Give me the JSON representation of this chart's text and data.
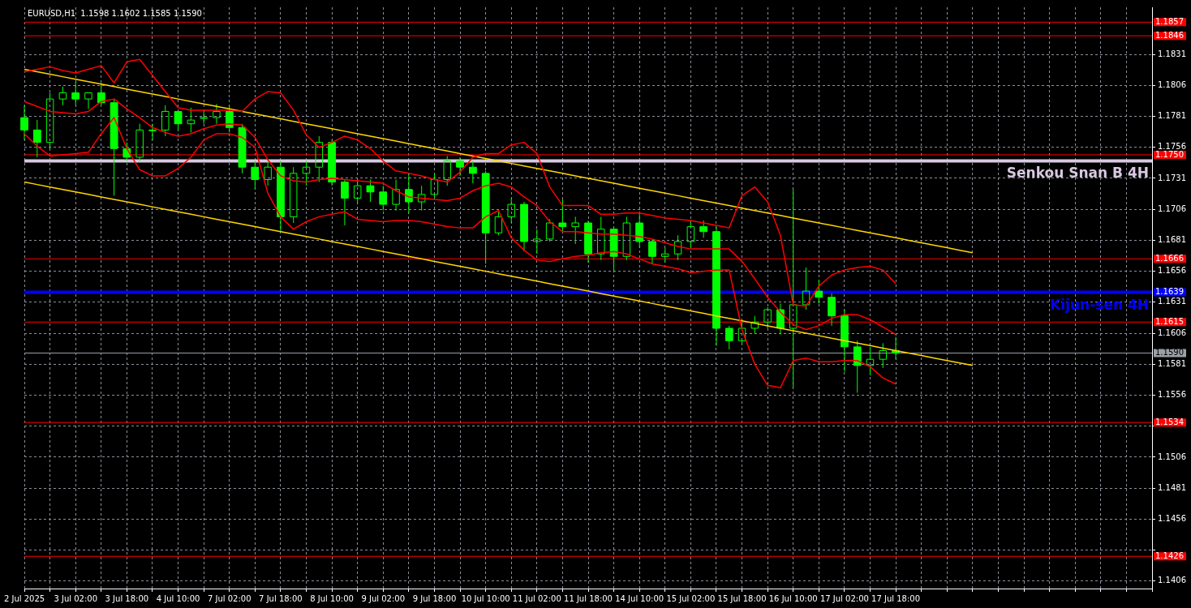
{
  "chart_data": {
    "type": "candlestick",
    "title": "EURUSD,H1  1.1598 1.1602 1.1585 1.1590",
    "color": "#00ff00",
    "categories": [
      "2 Jul 2025",
      null,
      null,
      null,
      "3 Jul 02:00",
      null,
      null,
      null,
      "3 Jul 18:00",
      null,
      null,
      null,
      "4 Jul 10:00",
      null,
      null,
      null,
      "7 Jul 02:00",
      null,
      null,
      null,
      "7 Jul 18:00",
      null,
      null,
      null,
      "8 Jul 10:00",
      null,
      null,
      null,
      "9 Jul 02:00",
      null,
      null,
      null,
      "9 Jul 18:00",
      null,
      null,
      null,
      "10 Jul 10:00",
      null,
      null,
      null,
      "11 Jul 02:00",
      null,
      null,
      null,
      "11 Jul 18:00",
      null,
      null,
      null,
      "14 Jul 10:00",
      null,
      null,
      null,
      "15 Jul 02:00",
      null,
      null,
      null,
      "15 Jul 18:00",
      null,
      null,
      null,
      "16 Jul 10:00",
      null,
      null,
      null,
      "17 Jul 02:00",
      null,
      null,
      null,
      "17 Jul 18:00",
      null,
      null,
      null,
      null,
      null,
      null,
      null,
      null,
      null,
      null,
      null,
      null,
      null,
      null,
      null,
      null,
      null,
      null,
      null,
      null
    ],
    "ohlc": [
      [
        1.178,
        1.179,
        1.1762,
        1.177
      ],
      [
        1.177,
        1.1778,
        1.1748,
        1.176
      ],
      [
        1.176,
        1.18,
        1.1755,
        1.1795
      ],
      [
        1.1795,
        1.1805,
        1.179,
        1.18
      ],
      [
        1.18,
        1.1809,
        1.179,
        1.1795
      ],
      [
        1.1795,
        1.18,
        1.1787,
        1.18
      ],
      [
        1.18,
        1.1808,
        1.179,
        1.1792
      ],
      [
        1.1792,
        1.1795,
        1.1717,
        1.1755
      ],
      [
        1.1755,
        1.176,
        1.1745,
        1.1748
      ],
      [
        1.1748,
        1.1775,
        1.1745,
        1.177
      ],
      [
        1.177,
        1.1775,
        1.1762,
        1.177
      ],
      [
        1.177,
        1.179,
        1.1765,
        1.1785
      ],
      [
        1.1785,
        1.1785,
        1.177,
        1.1775
      ],
      [
        1.1775,
        1.1788,
        1.1768,
        1.1778
      ],
      [
        1.178,
        1.1785,
        1.1775,
        1.178
      ],
      [
        1.178,
        1.1791,
        1.1775,
        1.1785
      ],
      [
        1.1785,
        1.179,
        1.1768,
        1.1772
      ],
      [
        1.1772,
        1.1775,
        1.1735,
        1.174
      ],
      [
        1.174,
        1.1745,
        1.1722,
        1.173
      ],
      [
        1.173,
        1.1745,
        1.1725,
        1.174
      ],
      [
        1.174,
        1.1745,
        1.1688,
        1.17
      ],
      [
        1.17,
        1.174,
        1.1695,
        1.1735
      ],
      [
        1.1735,
        1.1745,
        1.1725,
        1.174
      ],
      [
        1.174,
        1.1765,
        1.1728,
        1.176
      ],
      [
        1.176,
        1.1762,
        1.1725,
        1.1728
      ],
      [
        1.1728,
        1.173,
        1.1693,
        1.1715
      ],
      [
        1.1715,
        1.173,
        1.171,
        1.1725
      ],
      [
        1.1725,
        1.173,
        1.1712,
        1.172
      ],
      [
        1.172,
        1.1725,
        1.1705,
        1.171
      ],
      [
        1.171,
        1.173,
        1.1705,
        1.1722
      ],
      [
        1.1722,
        1.1735,
        1.1703,
        1.1712
      ],
      [
        1.1712,
        1.1725,
        1.1705,
        1.1718
      ],
      [
        1.1718,
        1.1735,
        1.1715,
        1.173
      ],
      [
        1.173,
        1.1749,
        1.1725,
        1.1745
      ],
      [
        1.1745,
        1.1748,
        1.1733,
        1.174
      ],
      [
        1.174,
        1.1745,
        1.1727,
        1.1735
      ],
      [
        1.1735,
        1.1737,
        1.1662,
        1.1687
      ],
      [
        1.1687,
        1.1705,
        1.1685,
        1.17
      ],
      [
        1.17,
        1.1715,
        1.1695,
        1.171
      ],
      [
        1.171,
        1.1712,
        1.1672,
        1.168
      ],
      [
        1.168,
        1.169,
        1.167,
        1.1682
      ],
      [
        1.1682,
        1.1698,
        1.168,
        1.1695
      ],
      [
        1.1695,
        1.1714,
        1.1688,
        1.1692
      ],
      [
        1.1692,
        1.17,
        1.1678,
        1.1695
      ],
      [
        1.1695,
        1.1697,
        1.1663,
        1.167
      ],
      [
        1.167,
        1.17,
        1.1665,
        1.169
      ],
      [
        1.169,
        1.1692,
        1.1655,
        1.1668
      ],
      [
        1.1668,
        1.17,
        1.1665,
        1.1695
      ],
      [
        1.1695,
        1.1703,
        1.1675,
        1.168
      ],
      [
        1.168,
        1.1682,
        1.1662,
        1.1668
      ],
      [
        1.1668,
        1.1675,
        1.1663,
        1.167
      ],
      [
        1.167,
        1.1685,
        1.1665,
        1.168
      ],
      [
        1.168,
        1.1697,
        1.1675,
        1.1692
      ],
      [
        1.1692,
        1.1697,
        1.1683,
        1.1688
      ],
      [
        1.1688,
        1.1692,
        1.1596,
        1.161
      ],
      [
        1.161,
        1.1612,
        1.1593,
        1.16
      ],
      [
        1.16,
        1.1615,
        1.1597,
        1.161
      ],
      [
        1.161,
        1.162,
        1.1606,
        1.1615
      ],
      [
        1.1615,
        1.1627,
        1.161,
        1.1625
      ],
      [
        1.1625,
        1.163,
        1.1605,
        1.161
      ],
      [
        1.161,
        1.1722,
        1.1562,
        1.1629
      ],
      [
        1.1629,
        1.1659,
        1.1625,
        1.164
      ],
      [
        1.164,
        1.1649,
        1.163,
        1.1635
      ],
      [
        1.1635,
        1.1638,
        1.1612,
        1.162
      ],
      [
        1.162,
        1.1625,
        1.1575,
        1.1595
      ],
      [
        1.1595,
        1.16,
        1.1558,
        1.158
      ],
      [
        1.158,
        1.1595,
        1.1572,
        1.1585
      ],
      [
        1.1585,
        1.1598,
        1.1578,
        1.1592
      ],
      [
        1.1592,
        1.1603,
        1.1585,
        1.159
      ],
      null,
      null,
      null,
      null,
      null,
      null,
      null,
      null,
      null,
      null,
      null,
      null,
      null,
      null,
      null,
      null,
      null,
      null,
      null,
      null
    ],
    "series": [
      {
        "type": "line",
        "color": "#ff0000",
        "values": [
          1.1817,
          1.1819,
          1.1821,
          1.1818,
          1.1816,
          1.1819,
          1.1822,
          1.1808,
          1.1825,
          1.1827,
          1.1814,
          1.1801,
          1.1788,
          1.1786,
          1.1786,
          1.1786,
          1.1786,
          1.1785,
          1.1795,
          1.1801,
          1.18,
          1.1786,
          1.1766,
          1.1756,
          1.176,
          1.1765,
          1.1762,
          1.1755,
          1.1745,
          1.1737,
          1.1735,
          1.1733,
          1.173,
          1.1728,
          1.1736,
          1.1748,
          1.1751,
          1.1751,
          1.1758,
          1.176,
          1.1751,
          1.1724,
          1.1709,
          1.1709,
          1.1709,
          1.1702,
          1.1702,
          1.1703,
          1.1703,
          1.1701,
          1.1699,
          1.1698,
          1.1697,
          1.1695,
          1.1693,
          1.1691,
          1.1717,
          1.1724,
          1.1712,
          1.1685,
          1.1629,
          1.1628,
          1.1644,
          1.1653,
          1.1657,
          1.1659,
          1.166,
          1.1657,
          1.1646,
          null,
          null,
          null,
          null,
          null,
          null,
          null,
          null,
          null,
          null,
          null,
          null,
          null,
          null,
          null,
          null,
          null,
          null,
          null,
          null
        ]
      },
      {
        "type": "line",
        "color": "#ff0000",
        "values": [
          1.1793,
          1.1789,
          1.1785,
          1.1784,
          1.1783,
          1.1785,
          1.1793,
          1.1795,
          1.1787,
          1.178,
          1.1772,
          1.1768,
          1.1765,
          1.1767,
          1.1771,
          1.1774,
          1.1775,
          1.1774,
          1.1764,
          1.1746,
          1.1733,
          1.1729,
          1.1728,
          1.173,
          1.1731,
          1.173,
          1.1729,
          1.1728,
          1.1727,
          1.1721,
          1.1716,
          1.1715,
          1.1714,
          1.1713,
          1.1715,
          1.1721,
          1.1725,
          1.1727,
          1.1724,
          1.1716,
          1.1709,
          1.1696,
          1.1688,
          1.1688,
          1.1687,
          1.1686,
          1.1686,
          1.1685,
          1.1684,
          1.1682,
          1.1679,
          1.1676,
          1.1674,
          1.1674,
          1.1674,
          1.1674,
          1.1664,
          1.165,
          1.1635,
          1.1623,
          1.1613,
          1.1609,
          1.1612,
          1.1618,
          1.1621,
          1.1621,
          1.1617,
          1.1611,
          1.1605,
          null,
          null,
          null,
          null,
          null,
          null,
          null,
          null,
          null,
          null,
          null,
          null,
          null,
          null,
          null,
          null,
          null,
          null,
          null,
          null
        ]
      },
      {
        "type": "line",
        "color": "#ff0000",
        "values": [
          1.1767,
          1.1757,
          1.1749,
          1.175,
          1.1751,
          1.1752,
          1.1767,
          1.178,
          1.1755,
          1.1738,
          1.1733,
          1.1733,
          1.1739,
          1.1748,
          1.1762,
          1.1767,
          1.1767,
          1.1764,
          1.1756,
          1.1719,
          1.17,
          1.169,
          1.1696,
          1.17,
          1.1702,
          1.1704,
          1.1698,
          1.1697,
          1.1696,
          1.1697,
          1.1697,
          1.1696,
          1.1694,
          1.1692,
          1.1691,
          1.1691,
          1.17,
          1.1705,
          1.1683,
          1.1673,
          1.1665,
          1.1664,
          1.1666,
          1.1668,
          1.1669,
          1.1671,
          1.1672,
          1.167,
          1.1666,
          1.1662,
          1.166,
          1.1658,
          1.1655,
          1.1656,
          1.1657,
          1.1657,
          1.1609,
          1.1581,
          1.1564,
          1.1562,
          1.1584,
          1.1586,
          1.1583,
          1.1583,
          1.1584,
          1.1584,
          1.1579,
          1.157,
          1.1565,
          null,
          null,
          null,
          null,
          null,
          null,
          null,
          null,
          null,
          null,
          null,
          null,
          null,
          null,
          null,
          null,
          null,
          null,
          null,
          null
        ]
      },
      {
        "type": "line",
        "color": "#ffd700",
        "values": [
          1.1819,
          1.1817,
          1.1815,
          1.1813,
          1.1811,
          1.1809,
          1.1807,
          1.1805,
          1.1803,
          1.1801,
          1.1799,
          1.1797,
          1.1795,
          1.1793,
          1.1791,
          1.1789,
          1.1787,
          1.1785,
          1.1783,
          1.1781,
          1.1779,
          1.1777,
          1.1775,
          1.1773,
          1.1771,
          1.1769,
          1.1767,
          1.1765,
          1.1763,
          1.1761,
          1.1759,
          1.1757,
          1.1755,
          1.1753,
          1.1751,
          1.1749,
          1.1747,
          1.1745,
          1.1743,
          1.1741,
          1.1739,
          1.1737,
          1.1735,
          1.1733,
          1.1731,
          1.1729,
          1.1727,
          1.1725,
          1.1723,
          1.1721,
          1.1719,
          1.1717,
          1.1715,
          1.1713,
          1.1711,
          1.1709,
          1.1707,
          1.1705,
          1.1703,
          1.1701,
          1.1699,
          1.1697,
          1.1695,
          1.1693,
          1.1691,
          1.1689,
          1.1687,
          1.1685,
          1.1683,
          1.1681,
          1.1679,
          1.1677,
          1.1675,
          1.1673,
          1.1671,
          null,
          null,
          null,
          null,
          null,
          null,
          null,
          null,
          null,
          null,
          null,
          null,
          null,
          null
        ]
      },
      {
        "type": "line",
        "color": "#ffd700",
        "values": [
          1.1728,
          1.1726,
          1.1724,
          1.1722,
          1.172,
          1.1718,
          1.1716,
          1.1714,
          1.1712,
          1.171,
          1.1708,
          1.1706,
          1.1704,
          1.1702,
          1.17,
          1.1698,
          1.1696,
          1.1694,
          1.1692,
          1.169,
          1.1688,
          1.1686,
          1.1684,
          1.1682,
          1.168,
          1.1678,
          1.1676,
          1.1674,
          1.1672,
          1.167,
          1.1668,
          1.1666,
          1.1664,
          1.1662,
          1.166,
          1.1658,
          1.1656,
          1.1654,
          1.1652,
          1.165,
          1.1648,
          1.1646,
          1.1644,
          1.1642,
          1.164,
          1.1638,
          1.1636,
          1.1634,
          1.1632,
          1.163,
          1.1628,
          1.1626,
          1.1624,
          1.1622,
          1.162,
          1.1618,
          1.1616,
          1.1614,
          1.1612,
          1.161,
          1.1608,
          1.1606,
          1.1604,
          1.1602,
          1.16,
          1.1598,
          1.1596,
          1.1594,
          1.1592,
          1.159,
          1.1588,
          1.1586,
          1.1584,
          1.1582,
          1.158,
          null,
          null,
          null,
          null,
          null,
          null,
          null,
          null,
          null,
          null,
          null,
          null,
          null,
          null
        ]
      }
    ],
    "ylim": [
      1.14,
      1.1869
    ],
    "yticks": [
      1.1406,
      {
        "value": 1.1431,
        "label": null
      },
      1.1456,
      1.1481,
      1.1506,
      {
        "value": 1.1531,
        "label": null
      },
      1.1556,
      1.1581,
      1.1606,
      1.1631,
      1.1656,
      1.1681,
      1.1706,
      1.1731,
      1.1756,
      1.1781,
      1.1806,
      1.1831
    ],
    "grid": true,
    "ref_lines": [
      {
        "axis": "y",
        "value": 1.1857,
        "label": "1.1857",
        "color": "#ff0000"
      },
      {
        "axis": "y",
        "value": 1.1846,
        "label": "1.1846",
        "color": "#ff0000"
      },
      {
        "axis": "y",
        "value": 1.175,
        "label": "1.1750",
        "color": "#ff0000"
      },
      {
        "axis": "y",
        "value": 1.1745,
        "color": "#d8c8e0"
      },
      {
        "axis": "y",
        "value": 1.1666,
        "label": "1.1666",
        "color": "#ff0000"
      },
      {
        "axis": "y",
        "value": 1.1639,
        "label": "1.1639",
        "color": "#0000ff"
      },
      {
        "axis": "y",
        "value": 1.1615,
        "label": "1.1615",
        "color": "#ff0000"
      },
      {
        "axis": "y",
        "value": 1.159,
        "label": "1.1590",
        "color": "#9aa0a6"
      },
      {
        "axis": "y",
        "value": 1.1534,
        "label": "1.1534",
        "color": "#ff0000"
      },
      {
        "axis": "y",
        "value": 1.1426,
        "label": "1.1426",
        "color": "#ff0000"
      }
    ],
    "annotations": [
      {
        "text": "Senkou Snan B 4H",
        "y": 1.1745
      },
      {
        "text": "Kijun-sen 4H",
        "y": 1.1639
      }
    ]
  }
}
